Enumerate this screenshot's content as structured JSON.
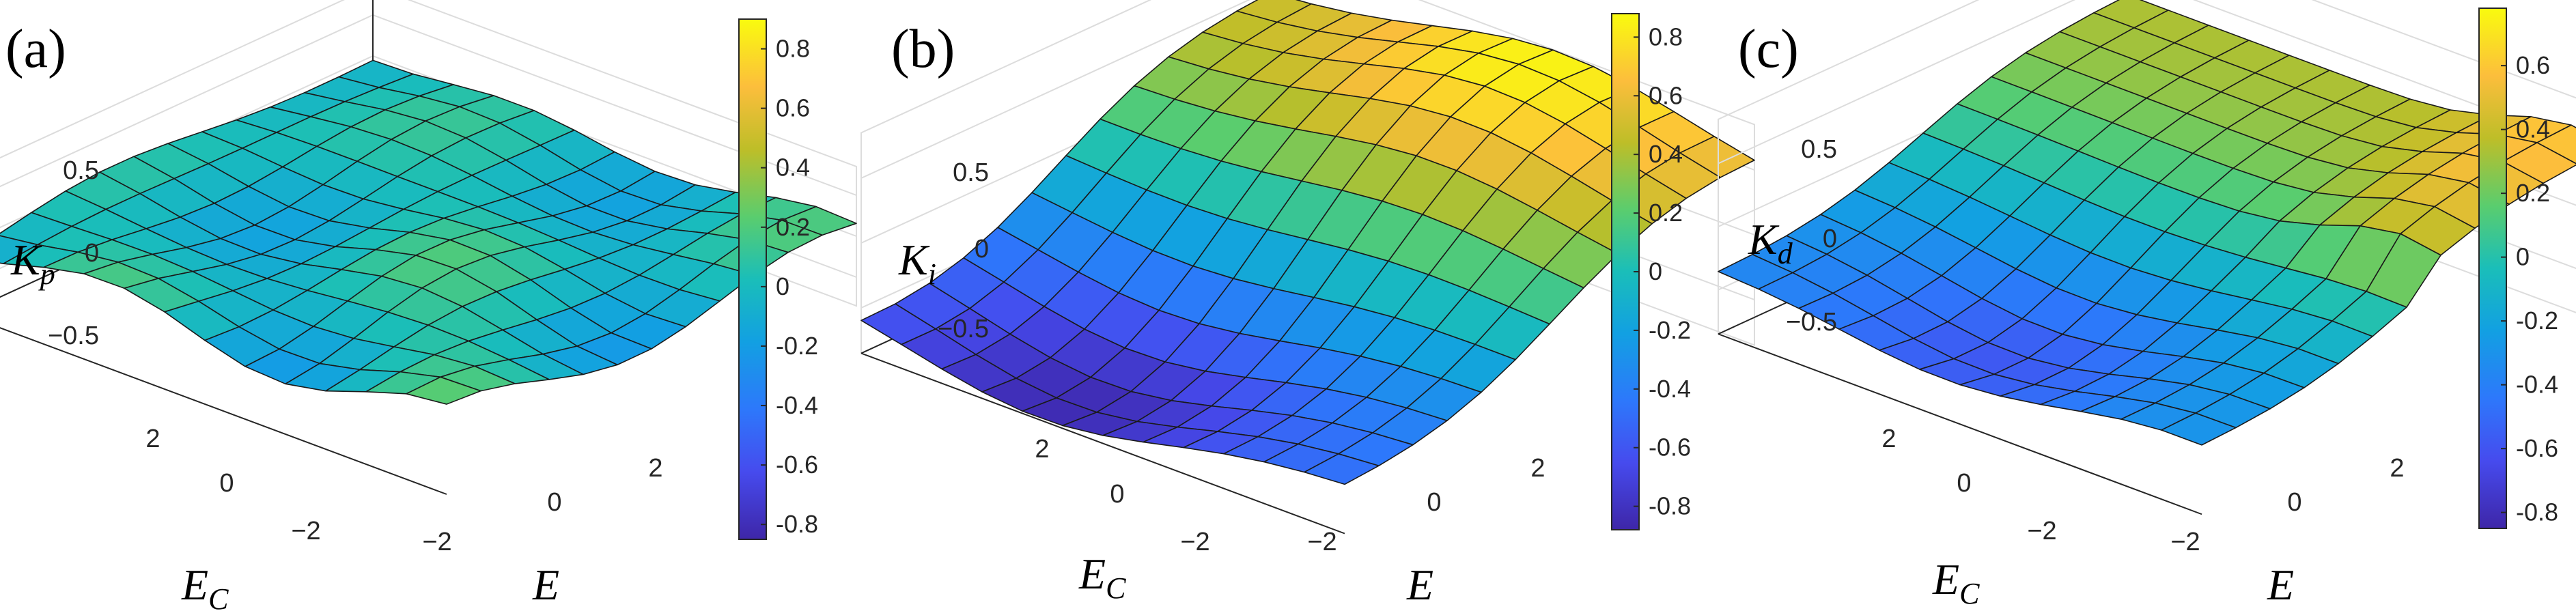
{
  "chart_data": [
    {
      "type": "surface",
      "panel_label": "(a)",
      "zlabel": {
        "main": "K",
        "sub": "p"
      },
      "xlabel": {
        "main": "E",
        "sub": ""
      },
      "ylabel": {
        "main": "E",
        "sub": "C"
      },
      "x_ticks": [
        "−2",
        "0",
        "2"
      ],
      "y_ticks": [
        "2",
        "0",
        "−2"
      ],
      "z_ticks": [
        "0.5",
        "0",
        "−0.5"
      ],
      "xlim": [
        -3,
        3
      ],
      "ylim": [
        -3,
        3
      ],
      "zlim": [
        -0.8,
        0.8
      ],
      "colormap": "parula",
      "colorbar": {
        "min": -0.85,
        "max": 0.9,
        "ticks": [
          "0.8",
          "0.6",
          "0.4",
          "0.2",
          "0",
          "-0.2",
          "-0.4",
          "-0.6",
          "-0.8"
        ]
      },
      "grid_n": 13,
      "surface": {
        "kind": "ripple",
        "amplitude": 0.28
      }
    },
    {
      "type": "surface",
      "panel_label": "(b)",
      "zlabel": {
        "main": "K",
        "sub": "i"
      },
      "xlabel": {
        "main": "E",
        "sub": ""
      },
      "ylabel": {
        "main": "E",
        "sub": "C"
      },
      "x_ticks": [
        "−2",
        "0",
        "2"
      ],
      "y_ticks": [
        "2",
        "0",
        "−2"
      ],
      "z_ticks": [
        "0.5",
        "0",
        "−0.5"
      ],
      "xlim": [
        -3,
        3
      ],
      "ylim": [
        -3,
        3
      ],
      "zlim": [
        -0.9,
        0.9
      ],
      "colormap": "parula",
      "colorbar": {
        "min": -0.88,
        "max": 0.88,
        "ticks": [
          "0.8",
          "0.6",
          "0.4",
          "0.2",
          "0",
          "-0.2",
          "-0.4",
          "-0.6",
          "-0.8"
        ]
      },
      "grid_n": 13,
      "surface": {
        "kind": "saddle",
        "amplitude": 0.88
      }
    },
    {
      "type": "surface",
      "panel_label": "(c)",
      "zlabel": {
        "main": "K",
        "sub": "d"
      },
      "xlabel": {
        "main": "E",
        "sub": ""
      },
      "ylabel": {
        "main": "E",
        "sub": "C"
      },
      "x_ticks": [
        "−2",
        "0",
        "2"
      ],
      "y_ticks": [
        "2",
        "0",
        "−2"
      ],
      "z_ticks": [
        "0.5",
        "0",
        "−0.5"
      ],
      "xlim": [
        -3,
        3
      ],
      "ylim": [
        -3,
        3
      ],
      "zlim": [
        -0.9,
        0.8
      ],
      "colormap": "parula",
      "colorbar": {
        "min": -0.85,
        "max": 0.78,
        "ticks": [
          "0.6",
          "0.4",
          "0.2",
          "0",
          "-0.2",
          "-0.4",
          "-0.6",
          "-0.8"
        ]
      },
      "grid_n": 13,
      "surface": {
        "kind": "valley",
        "amplitude": 0.8
      }
    }
  ]
}
